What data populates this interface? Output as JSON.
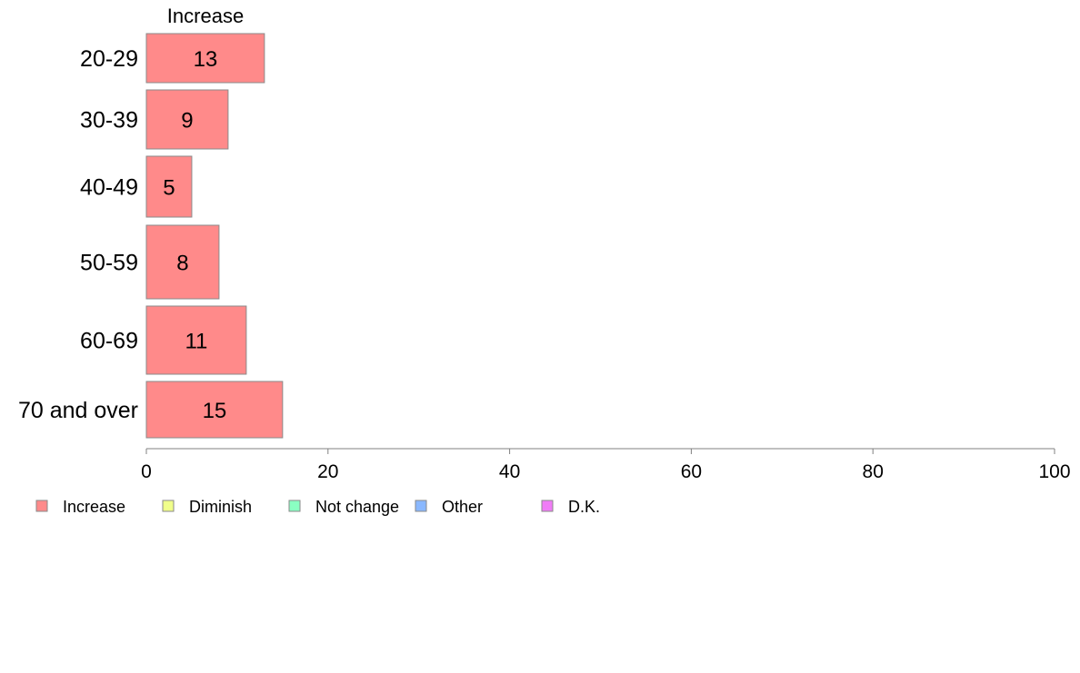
{
  "chart_data": {
    "type": "bar",
    "orientation": "horizontal",
    "title": "",
    "xlabel": "",
    "ylabel": "",
    "xlim": [
      0,
      100
    ],
    "x_ticks": [
      0,
      20,
      40,
      60,
      80,
      100
    ],
    "grid": false,
    "categories": [
      "20-29",
      "30-39",
      "40-49",
      "50-59",
      "60-69",
      "70 and over"
    ],
    "series_header": "Increase",
    "series": [
      {
        "name": "Increase",
        "color": "#ff8a8a",
        "values": [
          13,
          9,
          5,
          8,
          11,
          15
        ]
      }
    ],
    "legend": {
      "placement": "bottom-left",
      "entries": [
        {
          "label": "Increase",
          "color": "#ff8a8a"
        },
        {
          "label": "Diminish",
          "color": "#f0ff8a"
        },
        {
          "label": "Not change",
          "color": "#8affc2"
        },
        {
          "label": "Other",
          "color": "#8ab8ff"
        },
        {
          "label": "D.K.",
          "color": "#f07cf6"
        }
      ]
    }
  }
}
